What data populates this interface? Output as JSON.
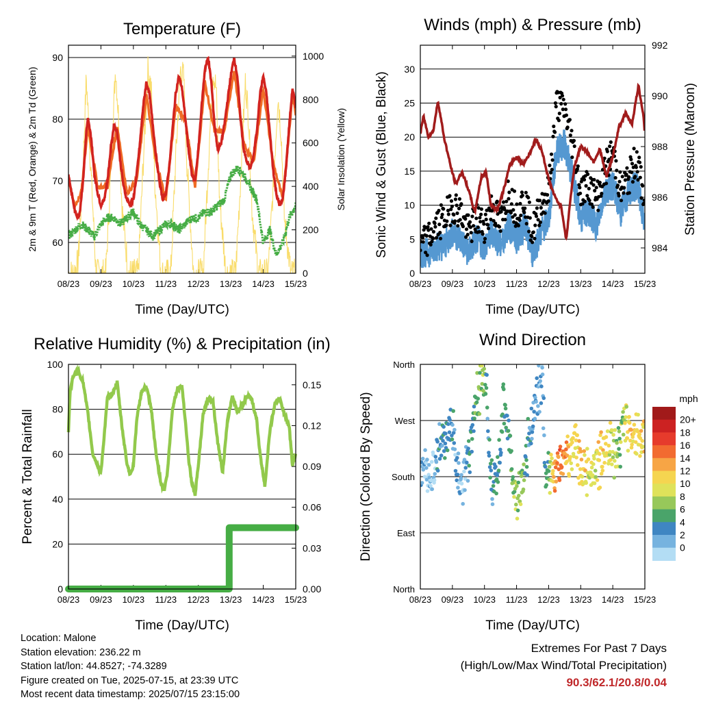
{
  "colors": {
    "temp_2m": "#d2231f",
    "temp_9m": "#ef6c26",
    "dewpoint": "#46ad45",
    "solar": "#f9dc6a",
    "wind_sonic": "#5598d1",
    "wind_gust": "#000000",
    "pressure": "#a11c1c",
    "rh": "#92c94c",
    "precip": "#46ad45",
    "extremes_text": "#c0282a"
  },
  "time_ticks": [
    "08/23",
    "09/23",
    "10/23",
    "11/23",
    "12/23",
    "13/23",
    "14/23",
    "15/23"
  ],
  "chart_data": [
    {
      "id": "temperature",
      "type": "line",
      "title": "Temperature (F)",
      "xlabel": "Time (Day/UTC)",
      "ylabel": "2m & 9m T (Red, Orange) & 2m Td (Green)",
      "ylabel_right": "Solar Insolation (Yellow)",
      "xlim": [
        0,
        7
      ],
      "ylim": [
        55,
        92
      ],
      "ylim_right": [
        0,
        1050
      ],
      "yticks": [
        60,
        70,
        80,
        90
      ],
      "yticks_right": [
        0,
        200,
        400,
        600,
        800,
        1000
      ],
      "grid": true,
      "series": [
        {
          "id": "t2m",
          "x": [
            0,
            0.1,
            0.2,
            0.3,
            0.35,
            0.45,
            0.55,
            0.6,
            0.7,
            0.8,
            0.9,
            1.0,
            1.1,
            1.2,
            1.3,
            1.4,
            1.5,
            1.6,
            1.7,
            1.8,
            1.9,
            2.0,
            2.1,
            2.2,
            2.3,
            2.4,
            2.5,
            2.6,
            2.7,
            2.8,
            2.9,
            3.0,
            3.1,
            3.2,
            3.3,
            3.4,
            3.5,
            3.6,
            3.7,
            3.8,
            3.9,
            4.0,
            4.1,
            4.2,
            4.3,
            4.4,
            4.5,
            4.6,
            4.7,
            4.8,
            4.9,
            5.0,
            5.1,
            5.2,
            5.3,
            5.4,
            5.5,
            5.6,
            5.7,
            5.8,
            5.9,
            6.0,
            6.1,
            6.2,
            6.3,
            6.4,
            6.5,
            6.6,
            6.7,
            6.8,
            6.9,
            7.0
          ],
          "values": [
            71,
            68,
            65,
            64,
            65,
            70,
            78,
            80,
            77,
            71,
            68,
            66,
            67,
            70,
            75,
            79,
            78,
            73,
            69,
            67,
            66,
            67,
            71,
            76,
            82,
            86,
            84,
            79,
            74,
            70,
            67,
            68,
            72,
            78,
            84,
            87,
            85,
            80,
            75,
            71,
            70,
            75,
            82,
            88,
            90,
            86,
            79,
            75,
            76,
            79,
            83,
            87,
            90,
            87,
            80,
            75,
            73,
            72,
            74,
            78,
            84,
            87,
            84,
            78,
            72,
            68,
            66,
            67,
            72,
            79,
            85,
            82
          ]
        },
        {
          "id": "t9m",
          "x": [
            0,
            0.2,
            0.4,
            0.6,
            0.9,
            1.2,
            1.5,
            1.8,
            2.1,
            2.4,
            2.7,
            3.0,
            3.3,
            3.6,
            3.9,
            4.2,
            4.5,
            4.8,
            5.1,
            5.4,
            5.7,
            6.0,
            6.3,
            6.6,
            6.9,
            7.0
          ],
          "values": [
            70,
            66,
            68,
            79,
            69,
            69,
            79,
            68,
            70,
            84,
            73,
            67,
            82,
            80,
            69,
            86,
            78,
            78,
            88,
            76,
            73,
            85,
            73,
            67,
            84,
            81
          ]
        },
        {
          "id": "td2m",
          "x": [
            0,
            0.2,
            0.4,
            0.6,
            0.8,
            1.0,
            1.2,
            1.4,
            1.6,
            1.8,
            2.0,
            2.2,
            2.4,
            2.6,
            2.8,
            3.0,
            3.2,
            3.4,
            3.6,
            3.8,
            4.0,
            4.2,
            4.4,
            4.6,
            4.8,
            5.0,
            5.2,
            5.4,
            5.6,
            5.8,
            6.0,
            6.2,
            6.4,
            6.6,
            6.8,
            7.0
          ],
          "values": [
            61,
            62,
            63,
            62,
            61,
            63,
            64,
            64,
            63,
            64,
            65,
            63,
            62,
            61,
            62,
            63,
            63,
            62,
            63,
            64,
            64,
            65,
            65,
            66,
            67,
            71,
            72,
            71,
            69,
            67,
            60,
            62,
            58,
            60,
            64,
            66
          ]
        },
        {
          "id": "solar",
          "axis": "right",
          "x": [
            0,
            0.15,
            0.3,
            0.45,
            0.55,
            0.65,
            0.85,
            1.15,
            1.3,
            1.45,
            1.55,
            1.65,
            1.85,
            2.15,
            2.3,
            2.45,
            2.55,
            2.65,
            2.85,
            3.15,
            3.3,
            3.45,
            3.55,
            3.65,
            3.85,
            4.15,
            4.3,
            4.45,
            4.55,
            4.65,
            4.85,
            5.15,
            5.3,
            5.45,
            5.55,
            5.65,
            5.85,
            6.15,
            6.3,
            6.45,
            6.55,
            6.65,
            6.85,
            7.0
          ],
          "values": [
            0,
            0,
            50,
            500,
            900,
            600,
            0,
            0,
            450,
            950,
            700,
            300,
            0,
            0,
            500,
            940,
            850,
            450,
            0,
            0,
            520,
            940,
            900,
            500,
            0,
            0,
            480,
            930,
            850,
            350,
            0,
            0,
            430,
            880,
            720,
            300,
            0,
            0,
            380,
            820,
            650,
            250,
            0,
            0
          ]
        }
      ]
    },
    {
      "id": "winds",
      "type": "scatter",
      "title": "Winds (mph) & Pressure (mb)",
      "xlabel": "Time (Day/UTC)",
      "ylabel": "Sonic Wind & Gust (Blue, Black)",
      "ylabel_right": "Station Pressure (Maroon)",
      "xlim": [
        0,
        7
      ],
      "ylim": [
        0,
        33.5
      ],
      "ylim_right": [
        983,
        992
      ],
      "yticks": [
        0,
        5,
        10,
        15,
        20,
        25,
        30
      ],
      "yticks_right": [
        984,
        986,
        988,
        990,
        992
      ],
      "grid": true,
      "series": [
        {
          "id": "sonic",
          "x": [
            0,
            0.25,
            0.5,
            0.75,
            1.0,
            1.25,
            1.5,
            1.75,
            2.0,
            2.25,
            2.5,
            2.75,
            3.0,
            3.25,
            3.5,
            3.75,
            4.0,
            4.25,
            4.5,
            4.75,
            5.0,
            5.25,
            5.5,
            5.75,
            6.0,
            6.25,
            6.5,
            6.75,
            7.0
          ],
          "values": [
            3,
            3,
            4,
            4,
            6,
            5,
            3,
            5,
            4,
            6,
            4,
            7,
            5,
            7,
            3,
            6,
            8,
            18,
            19,
            14,
            8,
            9,
            7,
            12,
            13,
            9,
            12,
            13,
            7
          ]
        },
        {
          "id": "gust",
          "x": [
            0,
            0.25,
            0.5,
            0.75,
            1.0,
            1.25,
            1.5,
            1.75,
            2.0,
            2.25,
            2.5,
            2.75,
            3.0,
            3.25,
            3.5,
            3.75,
            4.0,
            4.25,
            4.5,
            4.75,
            5.0,
            5.25,
            5.5,
            5.75,
            6.0,
            6.25,
            6.5,
            6.75,
            7.0
          ],
          "values": [
            4,
            5,
            7,
            8,
            10,
            9,
            6,
            8,
            7,
            10,
            7,
            12,
            9,
            11,
            6,
            10,
            12,
            25,
            24,
            19,
            12,
            13,
            11,
            15,
            18,
            12,
            14,
            17,
            10
          ]
        },
        {
          "id": "pressure",
          "axis": "right",
          "x": [
            0,
            0.1,
            0.25,
            0.4,
            0.55,
            0.75,
            0.95,
            1.1,
            1.3,
            1.5,
            1.7,
            1.9,
            2.05,
            2.2,
            2.4,
            2.6,
            2.8,
            3.0,
            3.2,
            3.4,
            3.6,
            3.8,
            4.0,
            4.2,
            4.4,
            4.55,
            4.65,
            4.8,
            5.0,
            5.2,
            5.4,
            5.6,
            5.8,
            6.0,
            6.2,
            6.4,
            6.6,
            6.8,
            6.95,
            7.0
          ],
          "values": [
            988.5,
            989.2,
            988.4,
            988.6,
            989.8,
            988.3,
            987.2,
            986.5,
            987.0,
            986.3,
            985.4,
            986.8,
            987.0,
            985.7,
            985.5,
            986.3,
            987.3,
            987.6,
            987.3,
            987.7,
            988.3,
            987.8,
            986.7,
            986.0,
            985.6,
            984.3,
            985.6,
            987.2,
            988.0,
            987.8,
            987.4,
            987.9,
            986.8,
            987.6,
            988.8,
            989.3,
            988.9,
            990.4,
            989.3,
            988.5
          ]
        }
      ]
    },
    {
      "id": "humidity",
      "type": "line",
      "title": "Relative Humidity (%) & Precipitation (in)",
      "xlabel": "Time (Day/UTC)",
      "ylabel": "Percent & Total Rainfall",
      "xlim": [
        0,
        7
      ],
      "ylim": [
        0,
        100
      ],
      "ylim_right": [
        0,
        0.165
      ],
      "yticks": [
        0,
        20,
        40,
        60,
        80,
        100
      ],
      "yticks_right": [
        "0.00",
        "0.03",
        "0.06",
        "0.09",
        "0.12",
        "0.15"
      ],
      "grid": true,
      "series": [
        {
          "id": "rh",
          "x": [
            0,
            0.05,
            0.15,
            0.3,
            0.45,
            0.6,
            0.75,
            0.9,
            1.0,
            1.1,
            1.2,
            1.35,
            1.5,
            1.65,
            1.8,
            1.9,
            2.0,
            2.1,
            2.25,
            2.4,
            2.55,
            2.7,
            2.85,
            2.95,
            3.05,
            3.2,
            3.35,
            3.5,
            3.6,
            3.7,
            3.8,
            3.9,
            4.0,
            4.15,
            4.3,
            4.45,
            4.6,
            4.75,
            4.9,
            5.05,
            5.2,
            5.35,
            5.5,
            5.65,
            5.8,
            5.9,
            6.05,
            6.2,
            6.35,
            6.5,
            6.65,
            6.8,
            6.9,
            7.0
          ],
          "values": [
            70,
            88,
            95,
            97,
            92,
            78,
            60,
            55,
            52,
            68,
            85,
            87,
            92,
            72,
            56,
            51,
            55,
            75,
            88,
            90,
            80,
            60,
            47,
            44,
            52,
            80,
            89,
            90,
            75,
            58,
            47,
            42,
            55,
            78,
            85,
            84,
            65,
            52,
            75,
            86,
            79,
            82,
            86,
            84,
            75,
            60,
            46,
            70,
            82,
            85,
            78,
            72,
            55,
            60
          ]
        },
        {
          "id": "precip",
          "axis": "right",
          "x": [
            0,
            4.95,
            4.95,
            7.0
          ],
          "values": [
            0,
            0,
            0.045,
            0.045
          ]
        }
      ]
    },
    {
      "id": "direction",
      "type": "scatter",
      "title": "Wind Direction",
      "xlabel": "Time (Day/UTC)",
      "ylabel": "Direction (Colored By Speed)",
      "xlim": [
        0,
        7
      ],
      "ylim": [
        0,
        360
      ],
      "yticks": [
        "North",
        "East",
        "South",
        "West",
        "North"
      ],
      "grid": true,
      "x": [
        0.1,
        0.3,
        0.5,
        0.7,
        0.9,
        1.05,
        1.2,
        1.4,
        1.5,
        1.7,
        1.85,
        1.95,
        2.05,
        2.2,
        2.4,
        2.6,
        2.75,
        2.9,
        3.0,
        3.2,
        3.4,
        3.6,
        3.8,
        3.9,
        4.0,
        4.2,
        4.4,
        4.6,
        4.8,
        5.0,
        5.2,
        5.4,
        5.6,
        5.8,
        6.0,
        6.2,
        6.4,
        6.6,
        6.8,
        7.0
      ],
      "values": [
        185,
        180,
        210,
        240,
        260,
        250,
        170,
        175,
        200,
        280,
        330,
        350,
        330,
        170,
        180,
        300,
        260,
        170,
        155,
        160,
        250,
        300,
        340,
        190,
        185,
        190,
        200,
        210,
        240,
        200,
        180,
        190,
        210,
        230,
        220,
        230,
        260,
        240,
        250,
        240
      ],
      "speeds": [
        3,
        2,
        4,
        6,
        5,
        4,
        3,
        3,
        5,
        7,
        8,
        10,
        6,
        5,
        6,
        6,
        7,
        8,
        9,
        8,
        5,
        4,
        3,
        6,
        7,
        16,
        17,
        14,
        12,
        14,
        12,
        10,
        13,
        12,
        10,
        8,
        11,
        14,
        12,
        14
      ],
      "colorbar": {
        "title": "mph",
        "labels": [
          "20+",
          "18",
          "16",
          "14",
          "12",
          "10",
          "8",
          "6",
          "4",
          "2",
          "0"
        ],
        "colors": [
          "#a11a1a",
          "#cc2222",
          "#e63b2c",
          "#f26b30",
          "#f7a545",
          "#f5d550",
          "#dfe25a",
          "#97c85a",
          "#4aa46a",
          "#3f86c2",
          "#76b3df",
          "#b3ddf4"
        ]
      }
    }
  ],
  "info": {
    "location": "Location: Malone",
    "elevation": "Station elevation: 236.22 m",
    "latlon": "Station lat/lon: 44.8527; -74.3289",
    "created": "Figure created on Tue, 2025-07-15, at 23:39 UTC",
    "latest": "Most recent data timestamp: 2025/07/15 23:15:00"
  },
  "extremes": {
    "title": "Extremes For Past 7 Days",
    "subtitle": "(High/Low/Max Wind/Total Precipitation)",
    "values": "90.3/62.1/20.8/0.04"
  }
}
